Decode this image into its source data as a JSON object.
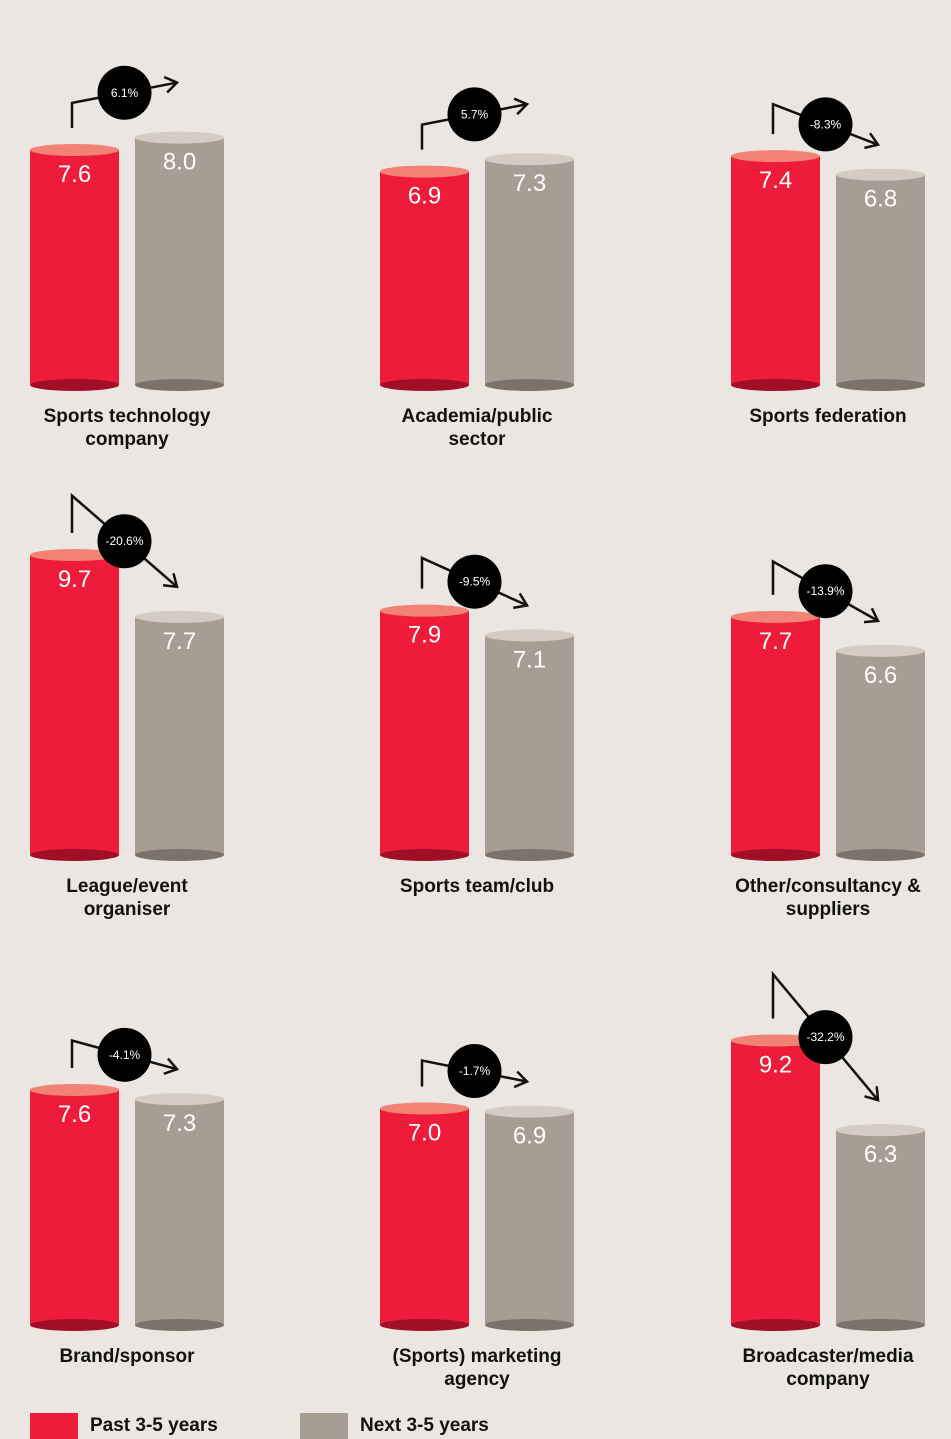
{
  "chart_data": {
    "type": "bar",
    "categories": [
      "Sports technology company",
      "Academia/public sector",
      "Sports federation",
      "League/event organiser",
      "Sports team/club",
      "Other/consultancy & suppliers",
      "Brand/sponsor",
      "(Sports) marketing agency",
      "Broadcaster/media company"
    ],
    "series": [
      {
        "name": "Past 3-5 years",
        "color": "#ee1c3a",
        "values": [
          7.6,
          6.9,
          7.4,
          9.7,
          7.9,
          7.7,
          7.6,
          7.0,
          9.2
        ],
        "value_labels": [
          "7.6",
          "6.9",
          "7.4",
          "9.7",
          "7.9",
          "7.7",
          "7.6",
          "7.0",
          "9.2"
        ]
      },
      {
        "name": "Next 3-5 years",
        "color": "#a89d93",
        "values": [
          8.0,
          7.3,
          6.8,
          7.7,
          7.1,
          6.6,
          7.3,
          6.9,
          6.3
        ],
        "value_labels": [
          "8.0",
          "7.3",
          "6.8",
          "7.7",
          "7.1",
          "6.6",
          "7.3",
          "6.9",
          "6.3"
        ]
      }
    ],
    "changes": [
      6.1,
      5.7,
      -8.3,
      -20.6,
      -9.5,
      -13.9,
      -4.1,
      -1.7,
      -32.2
    ],
    "change_labels": [
      "6.1%",
      "5.7%",
      "-8.3%",
      "-20.6%",
      "-9.5%",
      "-13.9%",
      "-4.1%",
      "-1.7%",
      "-32.2%"
    ]
  }
}
